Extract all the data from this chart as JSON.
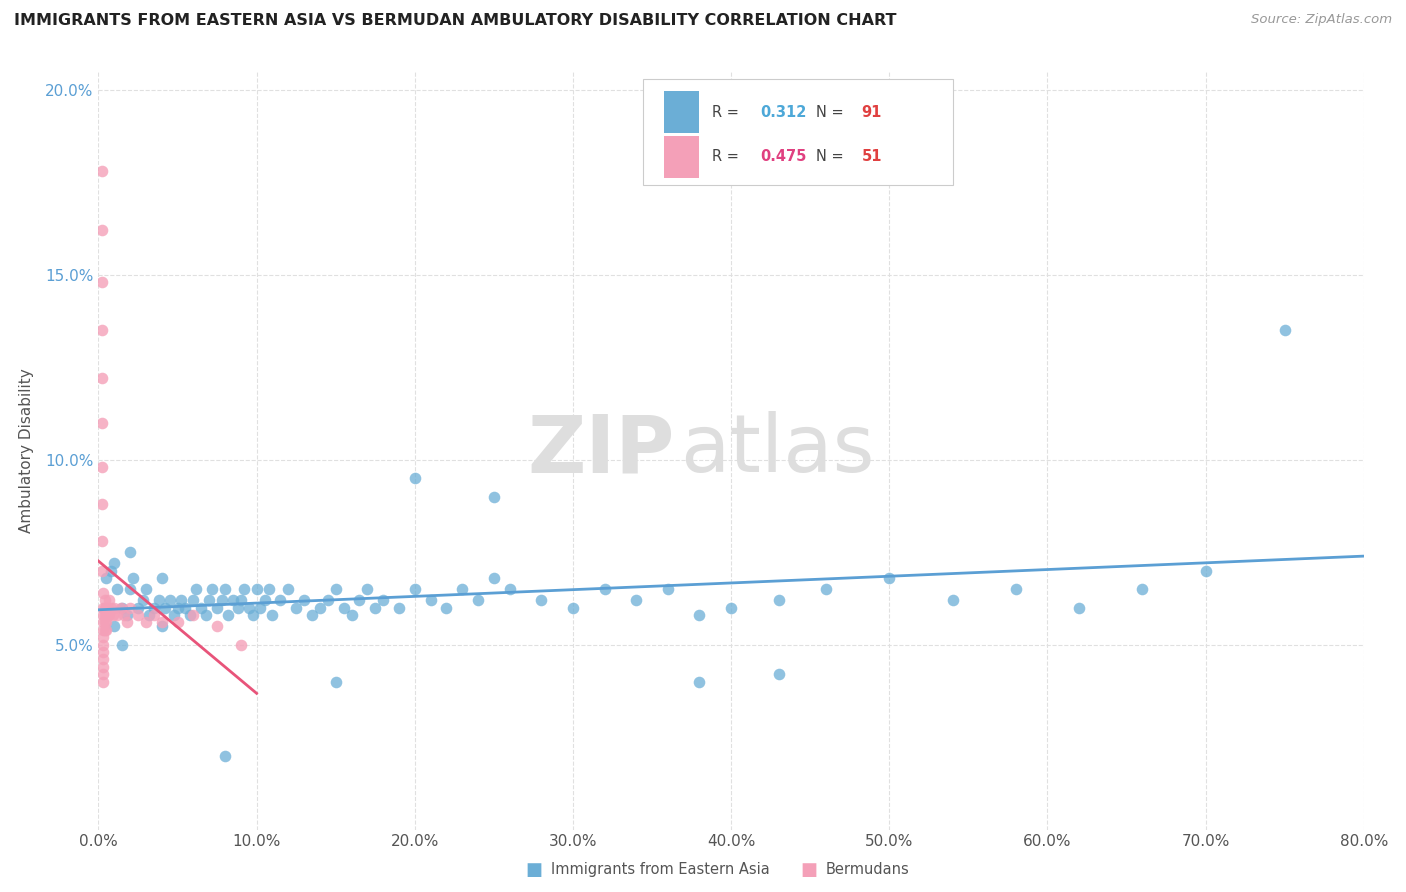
{
  "title": "IMMIGRANTS FROM EASTERN ASIA VS BERMUDAN AMBULATORY DISABILITY CORRELATION CHART",
  "source": "Source: ZipAtlas.com",
  "xlabel_blue": "Immigrants from Eastern Asia",
  "xlabel_pink": "Bermudans",
  "ylabel": "Ambulatory Disability",
  "r_blue": "0.312",
  "n_blue": "91",
  "r_pink": "0.475",
  "n_pink": "51",
  "xlim": [
    0.0,
    0.8
  ],
  "ylim": [
    0.0,
    0.205
  ],
  "yticks": [
    0.05,
    0.1,
    0.15,
    0.2
  ],
  "ytick_labels": [
    "5.0%",
    "10.0%",
    "15.0%",
    "20.0%"
  ],
  "xticks": [
    0.0,
    0.1,
    0.2,
    0.3,
    0.4,
    0.5,
    0.6,
    0.7,
    0.8
  ],
  "xtick_labels": [
    "0.0%",
    "10.0%",
    "20.0%",
    "30.0%",
    "40.0%",
    "50.0%",
    "60.0%",
    "70.0%",
    "80.0%"
  ],
  "color_blue": "#6baed6",
  "color_pink": "#f4a0b8",
  "line_color_blue": "#5b9fd4",
  "line_color_pink": "#e8547a",
  "watermark_zip": "ZIP",
  "watermark_atlas": "atlas",
  "blue_scatter_x": [
    0.005,
    0.008,
    0.01,
    0.01,
    0.012,
    0.015,
    0.015,
    0.018,
    0.02,
    0.02,
    0.022,
    0.025,
    0.028,
    0.03,
    0.032,
    0.035,
    0.038,
    0.04,
    0.04,
    0.042,
    0.045,
    0.048,
    0.05,
    0.052,
    0.055,
    0.058,
    0.06,
    0.062,
    0.065,
    0.068,
    0.07,
    0.072,
    0.075,
    0.078,
    0.08,
    0.082,
    0.085,
    0.088,
    0.09,
    0.092,
    0.095,
    0.098,
    0.1,
    0.102,
    0.105,
    0.108,
    0.11,
    0.115,
    0.12,
    0.125,
    0.13,
    0.135,
    0.14,
    0.145,
    0.15,
    0.155,
    0.16,
    0.165,
    0.17,
    0.175,
    0.18,
    0.19,
    0.2,
    0.21,
    0.22,
    0.23,
    0.24,
    0.25,
    0.26,
    0.28,
    0.3,
    0.32,
    0.34,
    0.36,
    0.38,
    0.4,
    0.43,
    0.46,
    0.5,
    0.54,
    0.58,
    0.62,
    0.66,
    0.7,
    0.75,
    0.25,
    0.38,
    0.43,
    0.2,
    0.15,
    0.08
  ],
  "blue_scatter_y": [
    0.068,
    0.07,
    0.072,
    0.055,
    0.065,
    0.06,
    0.05,
    0.058,
    0.065,
    0.075,
    0.068,
    0.06,
    0.062,
    0.065,
    0.058,
    0.06,
    0.062,
    0.068,
    0.055,
    0.06,
    0.062,
    0.058,
    0.06,
    0.062,
    0.06,
    0.058,
    0.062,
    0.065,
    0.06,
    0.058,
    0.062,
    0.065,
    0.06,
    0.062,
    0.065,
    0.058,
    0.062,
    0.06,
    0.062,
    0.065,
    0.06,
    0.058,
    0.065,
    0.06,
    0.062,
    0.065,
    0.058,
    0.062,
    0.065,
    0.06,
    0.062,
    0.058,
    0.06,
    0.062,
    0.065,
    0.06,
    0.058,
    0.062,
    0.065,
    0.06,
    0.062,
    0.06,
    0.065,
    0.062,
    0.06,
    0.065,
    0.062,
    0.068,
    0.065,
    0.062,
    0.06,
    0.065,
    0.062,
    0.065,
    0.058,
    0.06,
    0.062,
    0.065,
    0.068,
    0.062,
    0.065,
    0.06,
    0.065,
    0.07,
    0.135,
    0.09,
    0.04,
    0.042,
    0.095,
    0.04,
    0.02
  ],
  "pink_scatter_x": [
    0.002,
    0.002,
    0.002,
    0.002,
    0.002,
    0.002,
    0.002,
    0.002,
    0.002,
    0.002,
    0.003,
    0.003,
    0.003,
    0.003,
    0.003,
    0.003,
    0.003,
    0.003,
    0.003,
    0.003,
    0.003,
    0.003,
    0.004,
    0.004,
    0.004,
    0.004,
    0.004,
    0.005,
    0.005,
    0.005,
    0.005,
    0.006,
    0.006,
    0.007,
    0.007,
    0.008,
    0.009,
    0.01,
    0.012,
    0.014,
    0.016,
    0.018,
    0.02,
    0.025,
    0.03,
    0.035,
    0.04,
    0.05,
    0.06,
    0.075,
    0.09
  ],
  "pink_scatter_y": [
    0.178,
    0.162,
    0.148,
    0.135,
    0.122,
    0.11,
    0.098,
    0.088,
    0.078,
    0.07,
    0.064,
    0.06,
    0.058,
    0.056,
    0.054,
    0.052,
    0.05,
    0.048,
    0.046,
    0.044,
    0.042,
    0.04,
    0.062,
    0.06,
    0.058,
    0.056,
    0.054,
    0.06,
    0.058,
    0.056,
    0.054,
    0.06,
    0.058,
    0.062,
    0.058,
    0.06,
    0.058,
    0.06,
    0.058,
    0.06,
    0.058,
    0.056,
    0.06,
    0.058,
    0.056,
    0.058,
    0.056,
    0.056,
    0.058,
    0.055,
    0.05
  ]
}
